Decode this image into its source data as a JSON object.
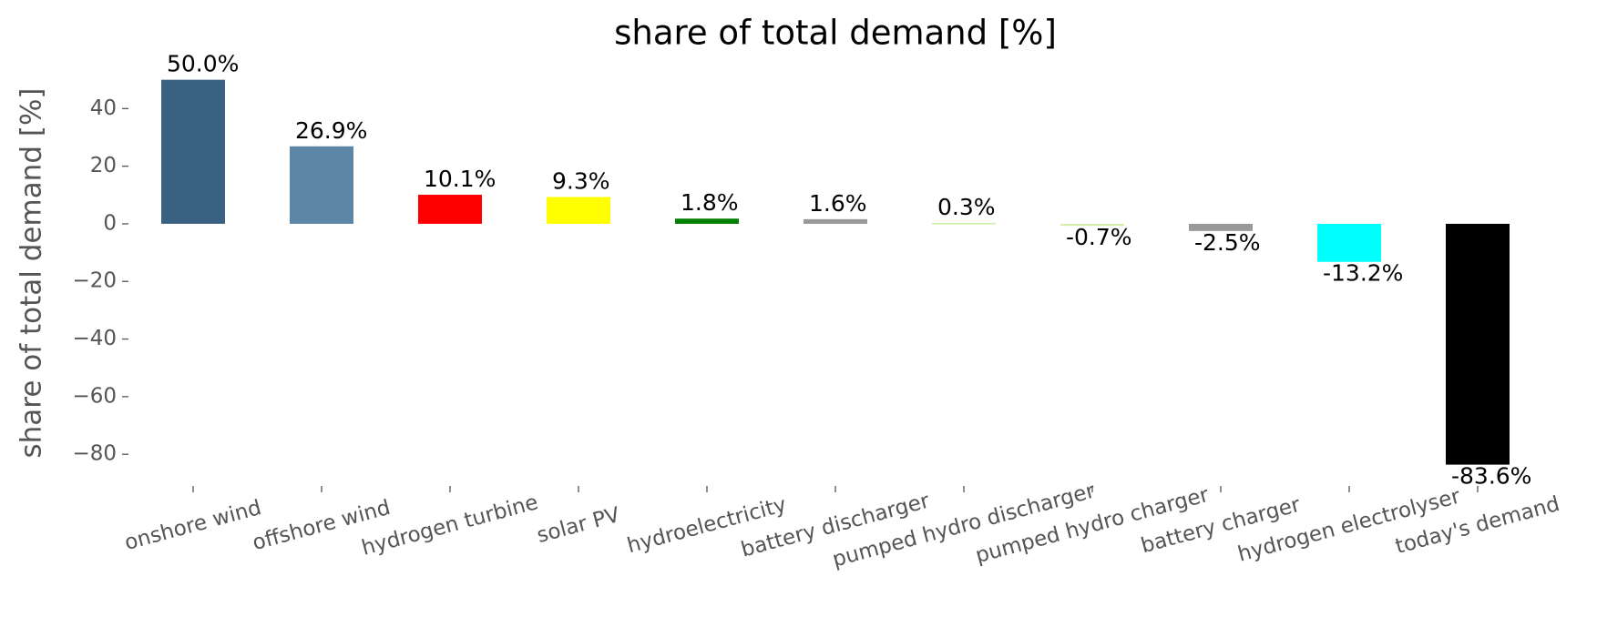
{
  "chart_data": {
    "type": "bar",
    "title": "share of total demand [%]",
    "y_label": "share of total demand [%]",
    "categories": [
      "onshore wind",
      "offshore wind",
      "hydrogen turbine",
      "solar PV",
      "hydroelectricity",
      "battery discharger",
      "pumped hydro discharger",
      "pumped hydro charger",
      "battery charger",
      "hydrogen electrolyser",
      "today's demand"
    ],
    "values": [
      50.0,
      26.9,
      10.1,
      9.3,
      1.8,
      1.6,
      0.3,
      -0.7,
      -2.5,
      -13.2,
      -83.6
    ],
    "value_labels": [
      "50.0%",
      "26.9%",
      "10.1%",
      "9.3%",
      "1.8%",
      "1.6%",
      "0.3%",
      "-0.7%",
      "-2.5%",
      "-13.2%",
      "-83.6%"
    ],
    "colors": [
      "#3b6182",
      "#5d85a6",
      "#ff0000",
      "#ffff00",
      "#008000",
      "#999999",
      "#c8f0a0",
      "#d4eeaa",
      "#999999",
      "#00ffff",
      "#000000"
    ],
    "ylim": [
      -91,
      54
    ],
    "yticks": [
      {
        "value": -80,
        "label": "−80"
      },
      {
        "value": -60,
        "label": "−60"
      },
      {
        "value": -40,
        "label": "−40"
      },
      {
        "value": -20,
        "label": "−20"
      },
      0,
      20,
      40
    ]
  }
}
